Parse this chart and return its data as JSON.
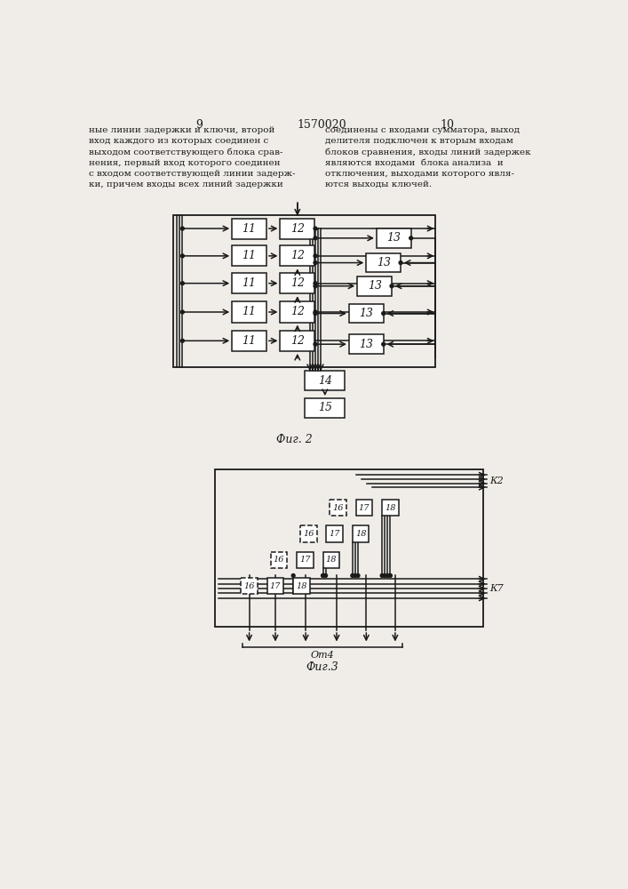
{
  "page_number_left": "9",
  "page_number_center": "1570020",
  "page_number_right": "10",
  "text_left": "ные линии задержки и ключи, второй\nвход каждого из которых соединен с\nвыходом соответствующего блока срав-\nнения, первый вход которого соединен\nс входом соответствующей линии задерж-\nки, причем входы всех линий задержки",
  "text_right": "соединены с входами сумматора, выход\nделителя подключен к вторым входам\nблоков сравнения, входы линий задержек\nявляются входами  блока анализа  и\nотключения, выходами которого явля-\nются выходы ключей.",
  "fig2_label": "Фиг. 2",
  "fig3_label": "Фиг.3",
  "fig3_sublabel": "От4",
  "k2_label": "К2",
  "k7_label": "К7",
  "background": "#f0ede8",
  "line_color": "#1a1a1a",
  "box_color": "#ffffff",
  "text_color": "#1a1a1a"
}
